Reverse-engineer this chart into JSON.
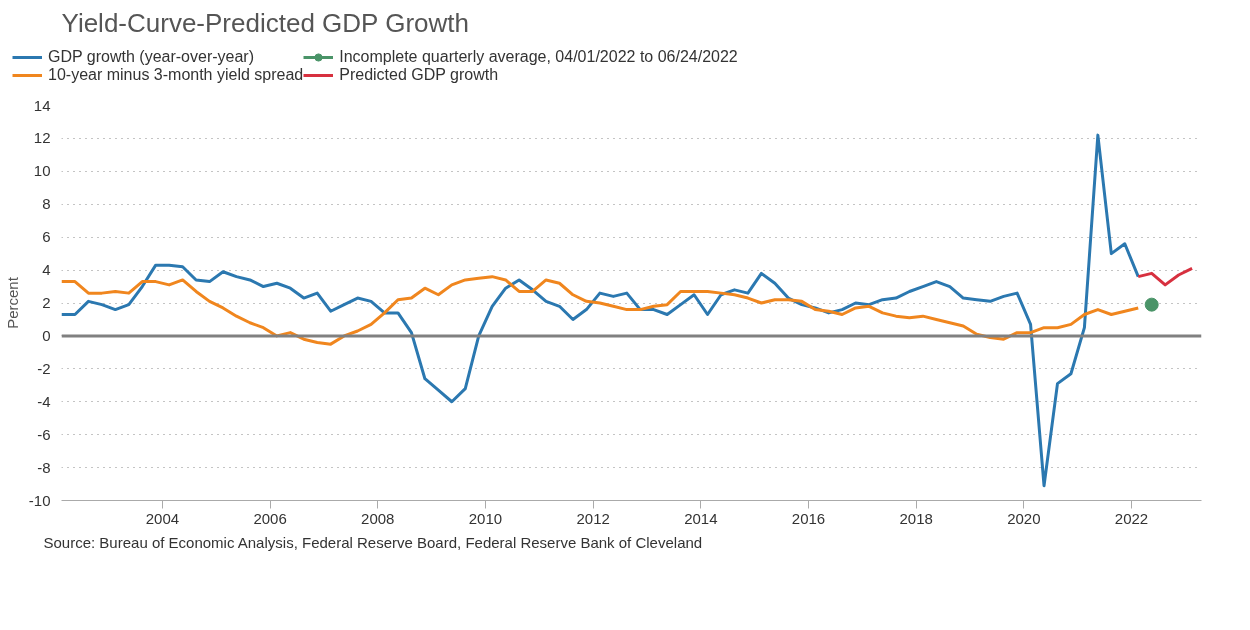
{
  "chart_data": {
    "type": "line",
    "title": "Yield-Curve-Predicted GDP Growth",
    "ylabel": "Percent",
    "x": [
      2002.125,
      2002.375,
      2002.625,
      2002.875,
      2003.125,
      2003.375,
      2003.625,
      2003.875,
      2004.125,
      2004.375,
      2004.625,
      2004.875,
      2005.125,
      2005.375,
      2005.625,
      2005.875,
      2006.125,
      2006.375,
      2006.625,
      2006.875,
      2007.125,
      2007.375,
      2007.625,
      2007.875,
      2008.125,
      2008.375,
      2008.625,
      2008.875,
      2009.125,
      2009.375,
      2009.625,
      2009.875,
      2010.125,
      2010.375,
      2010.625,
      2010.875,
      2011.125,
      2011.375,
      2011.625,
      2011.875,
      2012.125,
      2012.375,
      2012.625,
      2012.875,
      2013.125,
      2013.375,
      2013.625,
      2013.875,
      2014.125,
      2014.375,
      2014.625,
      2014.875,
      2015.125,
      2015.375,
      2015.625,
      2015.875,
      2016.125,
      2016.375,
      2016.625,
      2016.875,
      2017.125,
      2017.375,
      2017.625,
      2017.875,
      2018.125,
      2018.375,
      2018.625,
      2018.875,
      2019.125,
      2019.375,
      2019.625,
      2019.875,
      2020.125,
      2020.375,
      2020.625,
      2020.875,
      2021.125,
      2021.375,
      2021.625,
      2021.875,
      2022.125
    ],
    "series": [
      {
        "name": "GDP growth (year-over-year)",
        "color": "#2b78b0",
        "values": [
          1.3,
          1.3,
          2.1,
          1.9,
          1.6,
          1.9,
          3.0,
          4.3,
          4.3,
          4.2,
          3.4,
          3.3,
          3.9,
          3.6,
          3.4,
          3.0,
          3.2,
          2.9,
          2.3,
          2.6,
          1.5,
          1.9,
          2.3,
          2.1,
          1.4,
          1.4,
          0.2,
          -2.6,
          -3.3,
          -4.0,
          -3.2,
          0.0,
          1.8,
          2.9,
          3.4,
          2.8,
          2.1,
          1.8,
          1.0,
          1.6,
          2.6,
          2.4,
          2.6,
          1.6,
          1.6,
          1.3,
          1.9,
          2.5,
          1.3,
          2.5,
          2.8,
          2.6,
          3.8,
          3.2,
          2.3,
          1.9,
          1.7,
          1.4,
          1.6,
          2.0,
          1.9,
          2.2,
          2.3,
          2.7,
          3.0,
          3.3,
          3.0,
          2.3,
          2.2,
          2.1,
          2.4,
          2.6,
          0.7,
          -9.1,
          -2.9,
          -2.3,
          0.5,
          12.2,
          5.0,
          5.6,
          3.6
        ]
      },
      {
        "name": "10-year minus 3-month yield spread",
        "color": "#f0861e",
        "values": [
          3.3,
          3.3,
          2.6,
          2.6,
          2.7,
          2.6,
          3.3,
          3.3,
          3.1,
          3.4,
          2.7,
          2.1,
          1.7,
          1.2,
          0.8,
          0.5,
          0.0,
          0.2,
          -0.2,
          -0.4,
          -0.5,
          0.0,
          0.3,
          0.7,
          1.4,
          2.2,
          2.3,
          2.9,
          2.5,
          3.1,
          3.4,
          3.5,
          3.6,
          3.4,
          2.7,
          2.7,
          3.4,
          3.2,
          2.5,
          2.1,
          2.0,
          1.8,
          1.6,
          1.6,
          1.8,
          1.9,
          2.7,
          2.7,
          2.7,
          2.6,
          2.5,
          2.3,
          2.0,
          2.2,
          2.2,
          2.1,
          1.6,
          1.5,
          1.3,
          1.7,
          1.8,
          1.4,
          1.2,
          1.1,
          1.2,
          1.0,
          0.8,
          0.6,
          0.1,
          -0.1,
          -0.2,
          0.2,
          0.2,
          0.5,
          0.5,
          0.7,
          1.3,
          1.6,
          1.3,
          1.5,
          1.7
        ]
      },
      {
        "name": "Incomplete quarterly average, 04/01/2022 to 06/24/2022",
        "color": "#4a9468",
        "type": "scatter",
        "marker": "circle",
        "x": [
          2022.375
        ],
        "values": [
          1.9
        ]
      },
      {
        "name": "Predicted GDP growth",
        "color": "#d7303f",
        "x": [
          2022.125,
          2022.375,
          2022.625,
          2022.875,
          2023.125
        ],
        "values": [
          3.6,
          3.8,
          3.1,
          3.7,
          4.1
        ]
      }
    ],
    "xlim": [
      2002.125,
      2023.3
    ],
    "xticks": [
      2004,
      2006,
      2008,
      2010,
      2012,
      2014,
      2016,
      2018,
      2020,
      2022
    ],
    "ylim": [
      -10,
      14
    ],
    "yticks": [
      -10,
      -8,
      -6,
      -4,
      -2,
      0,
      2,
      4,
      6,
      8,
      10,
      12,
      14
    ],
    "grid": "y",
    "legend": "top",
    "line_style": "solid",
    "ref_lines": [
      {
        "axis": "y",
        "value": 0,
        "label": null,
        "color": "#808080"
      }
    ],
    "annotations": [
      "Source: Bureau of Economic Analysis, Federal Reserve Board, Federal Reserve Bank of Cleveland"
    ]
  }
}
